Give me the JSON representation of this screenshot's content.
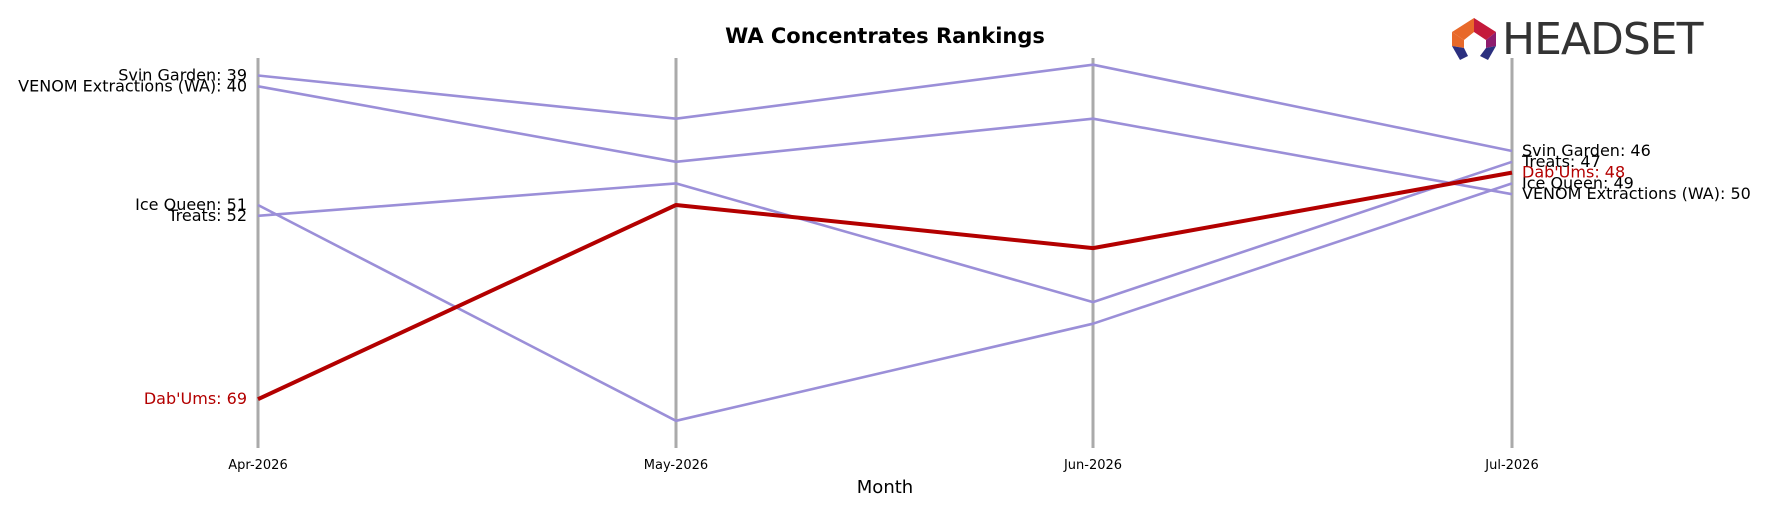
{
  "chart_data": {
    "type": "line",
    "title": "WA Concentrates Rankings",
    "xlabel": "Month",
    "ylabel": "",
    "categories": [
      "Apr-2026",
      "May-2026",
      "Jun-2026",
      "Jul-2026"
    ],
    "y_inverted": true,
    "ylim": [
      72,
      38
    ],
    "grid": "vertical lines at each month",
    "highlight_color": "#b30000",
    "default_color": "#9b8fd8",
    "series": [
      {
        "name": "Svin Garden",
        "values": [
          39,
          43,
          38,
          46
        ],
        "highlight": false,
        "start_label": "Svin Garden: 39",
        "end_label": "Svin Garden: 46"
      },
      {
        "name": "VENOM Extractions (WA)",
        "values": [
          40,
          47,
          43,
          50
        ],
        "highlight": false,
        "start_label": "VENOM Extractions (WA): 40",
        "end_label": "VENOM Extractions (WA): 50"
      },
      {
        "name": "Ice Queen",
        "values": [
          51,
          71,
          62,
          49
        ],
        "highlight": false,
        "start_label": "Ice Queen: 51",
        "end_label": "Ice Queen: 49"
      },
      {
        "name": "Treats",
        "values": [
          52,
          49,
          60,
          47
        ],
        "highlight": false,
        "start_label": "Treats: 52",
        "end_label": "Treats: 47"
      },
      {
        "name": "Dab'Ums",
        "values": [
          69,
          51,
          55,
          48
        ],
        "highlight": true,
        "start_label": "Dab'Ums: 69",
        "end_label": "Dab'Ums: 48"
      }
    ]
  },
  "logo": {
    "text": "HEADSET",
    "colors": [
      "#e8692a",
      "#c41a3b",
      "#8e1d6e",
      "#2b2f7f"
    ]
  }
}
